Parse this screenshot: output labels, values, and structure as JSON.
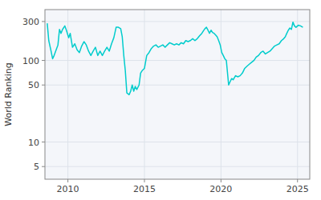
{
  "chart_data": {
    "type": "line",
    "y_label": "World Ranking",
    "color": "#00cccc",
    "log": "y",
    "grid": true,
    "xlim": [
      2008.5,
      2025.8
    ],
    "ylim": [
      3.5,
      420
    ],
    "xticks": [
      2010,
      2015,
      2020,
      2025
    ],
    "yticks": [
      5,
      10,
      50,
      100,
      300
    ],
    "x": [
      2008.65,
      2008.75,
      2008.9,
      2009.0,
      2009.1,
      2009.2,
      2009.35,
      2009.45,
      2009.55,
      2009.65,
      2009.8,
      2009.9,
      2010.05,
      2010.15,
      2010.3,
      2010.45,
      2010.6,
      2010.75,
      2010.9,
      2011.05,
      2011.2,
      2011.35,
      2011.5,
      2011.65,
      2011.8,
      2011.95,
      2012.1,
      2012.25,
      2012.4,
      2012.55,
      2012.7,
      2012.85,
      2013.0,
      2013.15,
      2013.3,
      2013.45,
      2013.55,
      2013.65,
      2013.75,
      2013.85,
      2014.0,
      2014.1,
      2014.2,
      2014.3,
      2014.4,
      2014.5,
      2014.65,
      2014.75,
      2014.85,
      2015.0,
      2015.15,
      2015.3,
      2015.45,
      2015.6,
      2015.75,
      2015.9,
      2016.05,
      2016.2,
      2016.35,
      2016.5,
      2016.65,
      2016.8,
      2016.95,
      2017.1,
      2017.25,
      2017.4,
      2017.55,
      2017.7,
      2017.85,
      2018.0,
      2018.15,
      2018.3,
      2018.45,
      2018.6,
      2018.75,
      2018.85,
      2018.95,
      2019.05,
      2019.15,
      2019.25,
      2019.35,
      2019.45,
      2019.55,
      2019.65,
      2019.75,
      2019.85,
      2019.95,
      2020.05,
      2020.15,
      2020.25,
      2020.35,
      2020.5,
      2020.6,
      2020.7,
      2020.8,
      2020.95,
      2021.1,
      2021.25,
      2021.4,
      2021.55,
      2021.7,
      2021.85,
      2022.0,
      2022.15,
      2022.3,
      2022.45,
      2022.6,
      2022.75,
      2022.9,
      2023.05,
      2023.2,
      2023.35,
      2023.5,
      2023.65,
      2023.8,
      2023.95,
      2024.1,
      2024.2,
      2024.3,
      2024.4,
      2024.5,
      2024.6,
      2024.7,
      2024.8,
      2024.9,
      2025.05,
      2025.2,
      2025.35
    ],
    "values": [
      285,
      175,
      130,
      105,
      115,
      130,
      155,
      240,
      215,
      240,
      265,
      235,
      190,
      215,
      145,
      160,
      135,
      125,
      150,
      170,
      155,
      130,
      115,
      130,
      145,
      115,
      130,
      115,
      130,
      145,
      130,
      160,
      190,
      255,
      255,
      245,
      195,
      115,
      75,
      40,
      38,
      42,
      50,
      42,
      48,
      44,
      50,
      70,
      75,
      80,
      115,
      125,
      140,
      150,
      155,
      145,
      150,
      155,
      145,
      155,
      165,
      160,
      155,
      160,
      155,
      165,
      160,
      175,
      170,
      175,
      185,
      175,
      185,
      200,
      215,
      230,
      245,
      255,
      235,
      215,
      235,
      220,
      215,
      205,
      195,
      175,
      155,
      125,
      115,
      105,
      100,
      50,
      55,
      60,
      58,
      65,
      63,
      65,
      70,
      80,
      85,
      90,
      95,
      100,
      110,
      115,
      125,
      130,
      120,
      125,
      130,
      140,
      150,
      155,
      160,
      175,
      185,
      195,
      215,
      235,
      250,
      240,
      295,
      265,
      255,
      270,
      265,
      255
    ]
  }
}
